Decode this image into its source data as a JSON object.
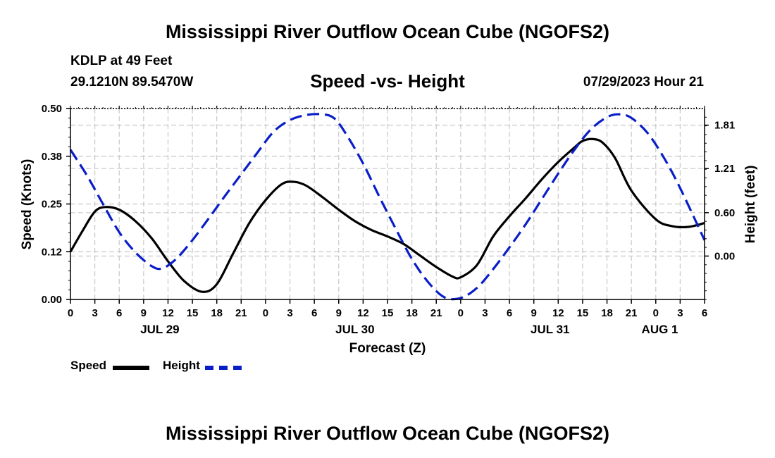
{
  "title": "Mississippi River Outflow Ocean Cube (NGOFS2)",
  "station": {
    "name_line": "KDLP at 49 Feet",
    "coords_line": "29.1210N  89.5470W"
  },
  "subtitle": "Speed -vs- Height",
  "datetime": "07/29/2023 Hour 21",
  "bottom_title": "Mississippi River Outflow Ocean Cube (NGOFS2)",
  "legend": {
    "speed_label": "Speed",
    "height_label": "Height"
  },
  "colors": {
    "speed": "#000000",
    "height": "#0a1ec8",
    "grid": "#c8c8c8",
    "axis": "#000000"
  },
  "chart_data": {
    "type": "line",
    "title": "Speed -vs- Height",
    "xlabel": "Forecast (Z)",
    "ylabel": "Speed (Knots)",
    "y2label": "Height (feet)",
    "x_range_hours": [
      0,
      78
    ],
    "ylim": [
      0,
      0.5
    ],
    "y2lim": [
      -0.6,
      2.04
    ],
    "y_ticks": [
      "0.00",
      "0.12",
      "0.25",
      "0.38",
      "0.50"
    ],
    "y_tick_values": [
      0,
      0.125,
      0.25,
      0.375,
      0.5
    ],
    "y2_ticks": [
      "0.00",
      "0.60",
      "1.21",
      "1.81"
    ],
    "y2_tick_values": [
      0,
      0.6,
      1.21,
      1.81
    ],
    "x_tick_labels": [
      "0",
      "3",
      "6",
      "9",
      "12",
      "15",
      "18",
      "21",
      "0",
      "3",
      "6",
      "9",
      "12",
      "15",
      "18",
      "21",
      "0",
      "3",
      "6",
      "9",
      "12",
      "15",
      "18",
      "21",
      "0",
      "3",
      "6"
    ],
    "x_tick_hours": [
      0,
      3,
      6,
      9,
      12,
      15,
      18,
      21,
      24,
      27,
      30,
      33,
      36,
      39,
      42,
      45,
      48,
      51,
      54,
      57,
      60,
      63,
      66,
      69,
      72,
      75,
      78
    ],
    "date_labels": [
      {
        "label": "JUL 29",
        "hour": 11
      },
      {
        "label": "JUL 30",
        "hour": 35
      },
      {
        "label": "JUL 31",
        "hour": 59
      },
      {
        "label": "AUG 1",
        "hour": 72.5
      }
    ],
    "grid": true,
    "series": [
      {
        "name": "Speed",
        "axis": "left",
        "style": "solid",
        "x": [
          0,
          1.5,
          3,
          4.3,
          6,
          8,
          10,
          12,
          14,
          16.2,
          18,
          20,
          22,
          24,
          26,
          27.5,
          29,
          31,
          33,
          35,
          37,
          39,
          41,
          43,
          45,
          47,
          48,
          50,
          52,
          54,
          56,
          58,
          60,
          62,
          63,
          64.3,
          65.5,
          67,
          69,
          72,
          74,
          76,
          78
        ],
        "values": [
          0.125,
          0.18,
          0.23,
          0.242,
          0.235,
          0.205,
          0.16,
          0.1,
          0.048,
          0.02,
          0.04,
          0.12,
          0.2,
          0.26,
          0.302,
          0.308,
          0.298,
          0.268,
          0.235,
          0.205,
          0.182,
          0.165,
          0.145,
          0.115,
          0.085,
          0.06,
          0.058,
          0.09,
          0.165,
          0.218,
          0.265,
          0.315,
          0.36,
          0.398,
          0.415,
          0.42,
          0.41,
          0.37,
          0.285,
          0.21,
          0.192,
          0.19,
          0.2
        ]
      },
      {
        "name": "Height",
        "axis": "right",
        "style": "dashed",
        "x": [
          0,
          2,
          4,
          6,
          8,
          10,
          11.3,
          13,
          15,
          17,
          19,
          21,
          23,
          25,
          27,
          29,
          31,
          32.5,
          34,
          36,
          38,
          40,
          42,
          44,
          46,
          48,
          50,
          52,
          54,
          56,
          58,
          60,
          62,
          64,
          66,
          67.5,
          69,
          71,
          73,
          75,
          78
        ],
        "values": [
          1.47,
          1.12,
          0.72,
          0.33,
          0.05,
          -0.14,
          -0.17,
          -0.04,
          0.22,
          0.52,
          0.83,
          1.13,
          1.43,
          1.72,
          1.88,
          1.95,
          1.96,
          1.9,
          1.67,
          1.28,
          0.82,
          0.38,
          -0.04,
          -0.36,
          -0.57,
          -0.58,
          -0.44,
          -0.18,
          0.12,
          0.44,
          0.79,
          1.14,
          1.47,
          1.75,
          1.92,
          1.96,
          1.91,
          1.7,
          1.36,
          0.94,
          0.22
        ]
      }
    ]
  }
}
